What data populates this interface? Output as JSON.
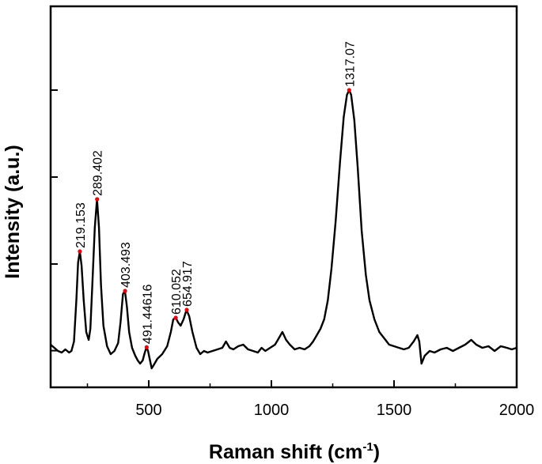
{
  "chart_data": {
    "type": "line",
    "title": "",
    "xlabel": "Raman shift (cm",
    "xlabel_sup": "-1",
    "xlabel_close": ")",
    "ylabel": "Intensity (a.u.)",
    "xlim": [
      100,
      2000
    ],
    "ylim": [
      0,
      1.0
    ],
    "x_ticks": [
      500,
      1000,
      1500,
      2000
    ],
    "x_tick_labels": [
      "500",
      "1000",
      "1500",
      "2000"
    ],
    "y_ticks": [
      0.061,
      0.335,
      0.61,
      0.885
    ],
    "grid": false,
    "line_color": "#000000",
    "marker_color": "#e8000b",
    "series": [
      {
        "values_xy": [
          [
            100,
            0.08
          ],
          [
            115,
            0.07
          ],
          [
            130,
            0.06
          ],
          [
            145,
            0.055
          ],
          [
            160,
            0.065
          ],
          [
            175,
            0.055
          ],
          [
            185,
            0.06
          ],
          [
            195,
            0.09
          ],
          [
            205,
            0.22
          ],
          [
            212,
            0.34
          ],
          [
            219,
            0.375
          ],
          [
            226,
            0.33
          ],
          [
            235,
            0.22
          ],
          [
            245,
            0.12
          ],
          [
            255,
            0.095
          ],
          [
            262,
            0.13
          ],
          [
            270,
            0.27
          ],
          [
            280,
            0.45
          ],
          [
            289,
            0.54
          ],
          [
            297,
            0.45
          ],
          [
            305,
            0.27
          ],
          [
            315,
            0.14
          ],
          [
            330,
            0.075
          ],
          [
            345,
            0.05
          ],
          [
            360,
            0.06
          ],
          [
            375,
            0.085
          ],
          [
            385,
            0.15
          ],
          [
            395,
            0.24
          ],
          [
            403,
            0.25
          ],
          [
            411,
            0.2
          ],
          [
            420,
            0.12
          ],
          [
            432,
            0.07
          ],
          [
            445,
            0.045
          ],
          [
            455,
            0.03
          ],
          [
            465,
            0.02
          ],
          [
            475,
            0.03
          ],
          [
            484,
            0.055
          ],
          [
            491,
            0.072
          ],
          [
            497,
            0.06
          ],
          [
            505,
            0.03
          ],
          [
            512,
            0.005
          ],
          [
            520,
            0.015
          ],
          [
            535,
            0.035
          ],
          [
            555,
            0.05
          ],
          [
            575,
            0.075
          ],
          [
            590,
            0.12
          ],
          [
            600,
            0.16
          ],
          [
            610,
            0.165
          ],
          [
            620,
            0.15
          ],
          [
            630,
            0.14
          ],
          [
            642,
            0.16
          ],
          [
            654,
            0.19
          ],
          [
            665,
            0.17
          ],
          [
            678,
            0.12
          ],
          [
            695,
            0.07
          ],
          [
            710,
            0.05
          ],
          [
            725,
            0.06
          ],
          [
            740,
            0.055
          ],
          [
            760,
            0.06
          ],
          [
            780,
            0.065
          ],
          [
            800,
            0.07
          ],
          [
            815,
            0.09
          ],
          [
            830,
            0.07
          ],
          [
            845,
            0.065
          ],
          [
            865,
            0.075
          ],
          [
            885,
            0.08
          ],
          [
            905,
            0.065
          ],
          [
            925,
            0.06
          ],
          [
            945,
            0.055
          ],
          [
            960,
            0.07
          ],
          [
            975,
            0.06
          ],
          [
            995,
            0.07
          ],
          [
            1015,
            0.08
          ],
          [
            1030,
            0.1
          ],
          [
            1045,
            0.12
          ],
          [
            1060,
            0.095
          ],
          [
            1075,
            0.08
          ],
          [
            1095,
            0.065
          ],
          [
            1115,
            0.07
          ],
          [
            1135,
            0.065
          ],
          [
            1155,
            0.075
          ],
          [
            1170,
            0.09
          ],
          [
            1185,
            0.11
          ],
          [
            1200,
            0.13
          ],
          [
            1215,
            0.16
          ],
          [
            1230,
            0.22
          ],
          [
            1245,
            0.32
          ],
          [
            1262,
            0.47
          ],
          [
            1280,
            0.66
          ],
          [
            1295,
            0.8
          ],
          [
            1308,
            0.87
          ],
          [
            1317,
            0.885
          ],
          [
            1325,
            0.87
          ],
          [
            1338,
            0.79
          ],
          [
            1352,
            0.64
          ],
          [
            1368,
            0.44
          ],
          [
            1385,
            0.3
          ],
          [
            1400,
            0.22
          ],
          [
            1420,
            0.16
          ],
          [
            1440,
            0.12
          ],
          [
            1460,
            0.1
          ],
          [
            1480,
            0.08
          ],
          [
            1500,
            0.075
          ],
          [
            1520,
            0.07
          ],
          [
            1540,
            0.065
          ],
          [
            1560,
            0.07
          ],
          [
            1580,
            0.09
          ],
          [
            1595,
            0.11
          ],
          [
            1603,
            0.09
          ],
          [
            1612,
            0.02
          ],
          [
            1625,
            0.045
          ],
          [
            1645,
            0.06
          ],
          [
            1665,
            0.055
          ],
          [
            1690,
            0.065
          ],
          [
            1715,
            0.07
          ],
          [
            1740,
            0.06
          ],
          [
            1765,
            0.07
          ],
          [
            1790,
            0.08
          ],
          [
            1815,
            0.095
          ],
          [
            1835,
            0.08
          ],
          [
            1860,
            0.07
          ],
          [
            1885,
            0.075
          ],
          [
            1910,
            0.06
          ],
          [
            1935,
            0.075
          ],
          [
            1960,
            0.07
          ],
          [
            1980,
            0.065
          ],
          [
            2000,
            0.07
          ]
        ]
      }
    ],
    "annotations": [
      {
        "x": 219.153,
        "y": 0.375,
        "text": "219.153"
      },
      {
        "x": 289.402,
        "y": 0.54,
        "text": "289.402"
      },
      {
        "x": 403.493,
        "y": 0.25,
        "text": "403.493"
      },
      {
        "x": 491.44616,
        "y": 0.072,
        "text": "491.44616"
      },
      {
        "x": 610.052,
        "y": 0.165,
        "text": "610.052"
      },
      {
        "x": 654.917,
        "y": 0.19,
        "text": "654.917"
      },
      {
        "x": 1317.07,
        "y": 0.885,
        "text": "1317.07"
      }
    ]
  }
}
